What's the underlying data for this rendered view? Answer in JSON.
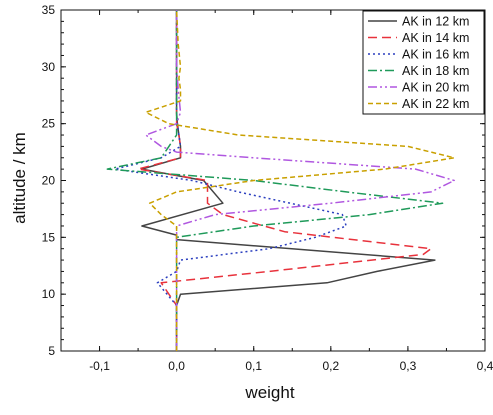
{
  "chart_data": {
    "type": "line",
    "xlabel": "weight",
    "ylabel": "altitude / km",
    "xlim": [
      -0.15,
      0.4
    ],
    "ylim": [
      5,
      35
    ],
    "x_ticks": [
      "-0,1",
      "0,0",
      "0,1",
      "0,2",
      "0,3",
      "0,4"
    ],
    "x_tick_values": [
      -0.1,
      0.0,
      0.1,
      0.2,
      0.3,
      0.4
    ],
    "y_ticks": [
      "5",
      "10",
      "15",
      "20",
      "25",
      "30",
      "35"
    ],
    "y_tick_values": [
      5,
      10,
      15,
      20,
      25,
      30,
      35
    ],
    "grid": false,
    "legend_position": "top-right",
    "series": [
      {
        "name": "AK in 12 km",
        "color": "#444444",
        "dash": "solid",
        "points": [
          [
            0.0,
            5
          ],
          [
            0.0,
            6
          ],
          [
            0.0,
            7
          ],
          [
            0.0,
            8
          ],
          [
            0.0,
            9
          ],
          [
            0.005,
            10
          ],
          [
            0.195,
            11
          ],
          [
            0.26,
            12
          ],
          [
            0.335,
            13
          ],
          [
            0.0,
            14.8
          ],
          [
            0.0,
            15.2
          ],
          [
            -0.045,
            16
          ],
          [
            0.06,
            18
          ],
          [
            0.035,
            20
          ],
          [
            -0.045,
            21
          ],
          [
            0.005,
            22
          ],
          [
            0.005,
            23
          ],
          [
            0.003,
            24
          ],
          [
            0.001,
            25
          ],
          [
            0.0,
            26
          ],
          [
            0.0,
            28
          ],
          [
            0.0,
            30
          ],
          [
            0.0,
            32
          ],
          [
            0.0,
            35
          ]
        ]
      },
      {
        "name": "AK in 14 km",
        "color": "#e8323c",
        "dash": "dashed",
        "points": [
          [
            0.0,
            5
          ],
          [
            0.0,
            8
          ],
          [
            0.0,
            9
          ],
          [
            -0.02,
            11
          ],
          [
            0.12,
            12
          ],
          [
            0.32,
            13.5
          ],
          [
            0.33,
            14
          ],
          [
            0.14,
            15.5
          ],
          [
            0.06,
            17
          ],
          [
            0.04,
            18
          ],
          [
            0.04,
            20
          ],
          [
            -0.05,
            21
          ],
          [
            0.005,
            22
          ],
          [
            0.005,
            23
          ],
          [
            0.003,
            24
          ],
          [
            0.0,
            25
          ],
          [
            0.0,
            30
          ],
          [
            0.0,
            35
          ]
        ]
      },
      {
        "name": "AK in 16 km",
        "color": "#2b3fbf",
        "dash": "dotted",
        "points": [
          [
            0.0,
            5
          ],
          [
            0.0,
            9
          ],
          [
            -0.025,
            11
          ],
          [
            0.0,
            12
          ],
          [
            0.005,
            13
          ],
          [
            0.12,
            14
          ],
          [
            0.18,
            15
          ],
          [
            0.22,
            16
          ],
          [
            0.215,
            17
          ],
          [
            0.08,
            19
          ],
          [
            0.02,
            20
          ],
          [
            -0.08,
            21
          ],
          [
            -0.02,
            22
          ],
          [
            0.005,
            23
          ],
          [
            0.003,
            24
          ],
          [
            0.001,
            25
          ],
          [
            0.0,
            26
          ],
          [
            0.0,
            30
          ],
          [
            0.0,
            35
          ]
        ]
      },
      {
        "name": "AK in 18 km",
        "color": "#1f9a5a",
        "dash": "dashdot",
        "points": [
          [
            0.0,
            5
          ],
          [
            0.0,
            12
          ],
          [
            0.0,
            14
          ],
          [
            0.0,
            15
          ],
          [
            0.1,
            16
          ],
          [
            0.25,
            17
          ],
          [
            0.345,
            18
          ],
          [
            0.22,
            19
          ],
          [
            0.1,
            20
          ],
          [
            -0.09,
            21
          ],
          [
            -0.02,
            22
          ],
          [
            -0.01,
            23
          ],
          [
            0.0,
            24
          ],
          [
            0.0,
            26
          ],
          [
            0.0,
            30
          ],
          [
            0.0,
            35
          ]
        ]
      },
      {
        "name": "AK in 20 km",
        "color": "#b057e0",
        "dash": "dashdotdot",
        "points": [
          [
            0.0,
            5
          ],
          [
            0.0,
            15
          ],
          [
            0.0,
            16
          ],
          [
            0.05,
            17
          ],
          [
            0.2,
            18
          ],
          [
            0.33,
            19
          ],
          [
            0.36,
            20
          ],
          [
            0.31,
            21
          ],
          [
            0.1,
            22
          ],
          [
            0.0,
            22.5
          ],
          [
            -0.02,
            23
          ],
          [
            -0.04,
            24
          ],
          [
            0.0,
            25
          ],
          [
            0.005,
            26
          ],
          [
            0.002,
            28
          ],
          [
            0.0,
            30
          ],
          [
            0.0,
            35
          ]
        ]
      },
      {
        "name": "AK in 22 km",
        "color": "#c9a000",
        "dash": "shortdash",
        "points": [
          [
            0.0,
            5
          ],
          [
            0.0,
            16
          ],
          [
            -0.02,
            17
          ],
          [
            -0.035,
            18
          ],
          [
            0.0,
            19
          ],
          [
            0.1,
            20
          ],
          [
            0.27,
            21
          ],
          [
            0.36,
            22
          ],
          [
            0.3,
            23
          ],
          [
            0.08,
            24
          ],
          [
            -0.01,
            25
          ],
          [
            -0.04,
            26
          ],
          [
            0.005,
            27
          ],
          [
            0.005,
            28
          ],
          [
            0.003,
            29
          ],
          [
            0.005,
            30
          ],
          [
            0.002,
            32
          ],
          [
            0.0,
            35
          ]
        ]
      }
    ]
  }
}
